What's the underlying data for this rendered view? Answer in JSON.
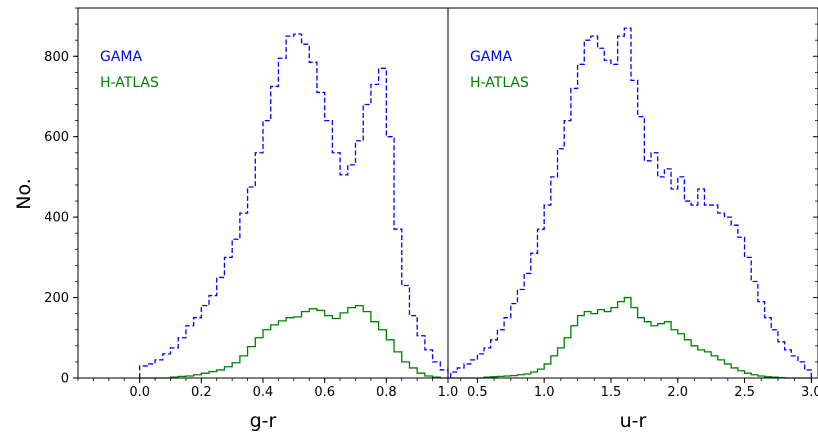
{
  "chart_data": [
    {
      "type": "histogram",
      "xlabel": "g-r",
      "ylabel": "No.",
      "xlim": [
        -0.2,
        1.0
      ],
      "ylim": [
        0,
        920
      ],
      "xticks": [
        "0.0",
        "0.2",
        "0.4",
        "0.6",
        "0.8",
        "1.0"
      ],
      "yticks": [
        "0",
        "200",
        "400",
        "600",
        "800"
      ],
      "legend_position": "top-left",
      "bin_edges": [
        0.0,
        0.025,
        0.05,
        0.075,
        0.1,
        0.125,
        0.15,
        0.175,
        0.2,
        0.225,
        0.25,
        0.275,
        0.3,
        0.325,
        0.35,
        0.375,
        0.4,
        0.425,
        0.45,
        0.475,
        0.5,
        0.525,
        0.55,
        0.575,
        0.6,
        0.625,
        0.65,
        0.675,
        0.7,
        0.725,
        0.75,
        0.775,
        0.8,
        0.825,
        0.85,
        0.875,
        0.9,
        0.925,
        0.95,
        0.975,
        1.0
      ],
      "series": [
        {
          "name": "GAMA",
          "color": "#0000ff",
          "linestyle": "dashed",
          "values": [
            30,
            35,
            45,
            60,
            75,
            100,
            130,
            150,
            180,
            205,
            250,
            300,
            345,
            410,
            475,
            560,
            640,
            725,
            795,
            850,
            855,
            830,
            785,
            710,
            640,
            560,
            505,
            530,
            590,
            680,
            730,
            770,
            600,
            370,
            230,
            155,
            105,
            70,
            40,
            20
          ]
        },
        {
          "name": "H-ATLAS",
          "color": "#008000",
          "linestyle": "solid",
          "values": [
            0,
            0,
            0,
            0,
            2,
            4,
            5,
            8,
            12,
            16,
            20,
            28,
            38,
            55,
            78,
            100,
            120,
            132,
            142,
            150,
            152,
            165,
            172,
            168,
            155,
            148,
            162,
            175,
            180,
            165,
            140,
            120,
            95,
            65,
            40,
            25,
            12,
            5,
            2,
            0
          ]
        }
      ]
    },
    {
      "type": "histogram",
      "xlabel": "u-r",
      "ylabel": "",
      "xlim": [
        0.28,
        3.05
      ],
      "ylim": [
        0,
        920
      ],
      "xticks": [
        "0.5",
        "1.0",
        "1.5",
        "2.0",
        "2.5",
        "3.0"
      ],
      "legend_position": "top-left",
      "bin_edges": [
        0.3,
        0.35,
        0.4,
        0.45,
        0.5,
        0.55,
        0.6,
        0.65,
        0.7,
        0.75,
        0.8,
        0.85,
        0.9,
        0.95,
        1.0,
        1.05,
        1.1,
        1.15,
        1.2,
        1.25,
        1.3,
        1.35,
        1.4,
        1.45,
        1.5,
        1.55,
        1.6,
        1.65,
        1.7,
        1.75,
        1.8,
        1.85,
        1.9,
        1.95,
        2.0,
        2.05,
        2.1,
        2.15,
        2.2,
        2.25,
        2.3,
        2.35,
        2.4,
        2.45,
        2.5,
        2.55,
        2.6,
        2.65,
        2.7,
        2.75,
        2.8,
        2.85,
        2.9,
        2.95,
        3.0
      ],
      "series": [
        {
          "name": "GAMA",
          "color": "#0000ff",
          "linestyle": "dashed",
          "values": [
            15,
            25,
            35,
            45,
            60,
            75,
            95,
            120,
            150,
            185,
            220,
            260,
            310,
            370,
            430,
            500,
            570,
            640,
            720,
            780,
            840,
            850,
            820,
            790,
            780,
            850,
            870,
            740,
            650,
            540,
            560,
            500,
            520,
            470,
            500,
            440,
            430,
            470,
            430,
            430,
            410,
            400,
            380,
            350,
            300,
            240,
            190,
            150,
            120,
            90,
            70,
            55,
            40,
            20
          ]
        },
        {
          "name": "H-ATLAS",
          "color": "#008000",
          "linestyle": "solid",
          "values": [
            0,
            0,
            0,
            0,
            0,
            2,
            3,
            4,
            5,
            6,
            8,
            10,
            15,
            22,
            35,
            55,
            75,
            100,
            130,
            155,
            165,
            160,
            170,
            165,
            175,
            190,
            200,
            175,
            150,
            140,
            130,
            135,
            140,
            120,
            110,
            95,
            80,
            70,
            65,
            55,
            45,
            35,
            25,
            18,
            12,
            8,
            5,
            3,
            2,
            1,
            0,
            0,
            0,
            0
          ]
        }
      ]
    }
  ]
}
